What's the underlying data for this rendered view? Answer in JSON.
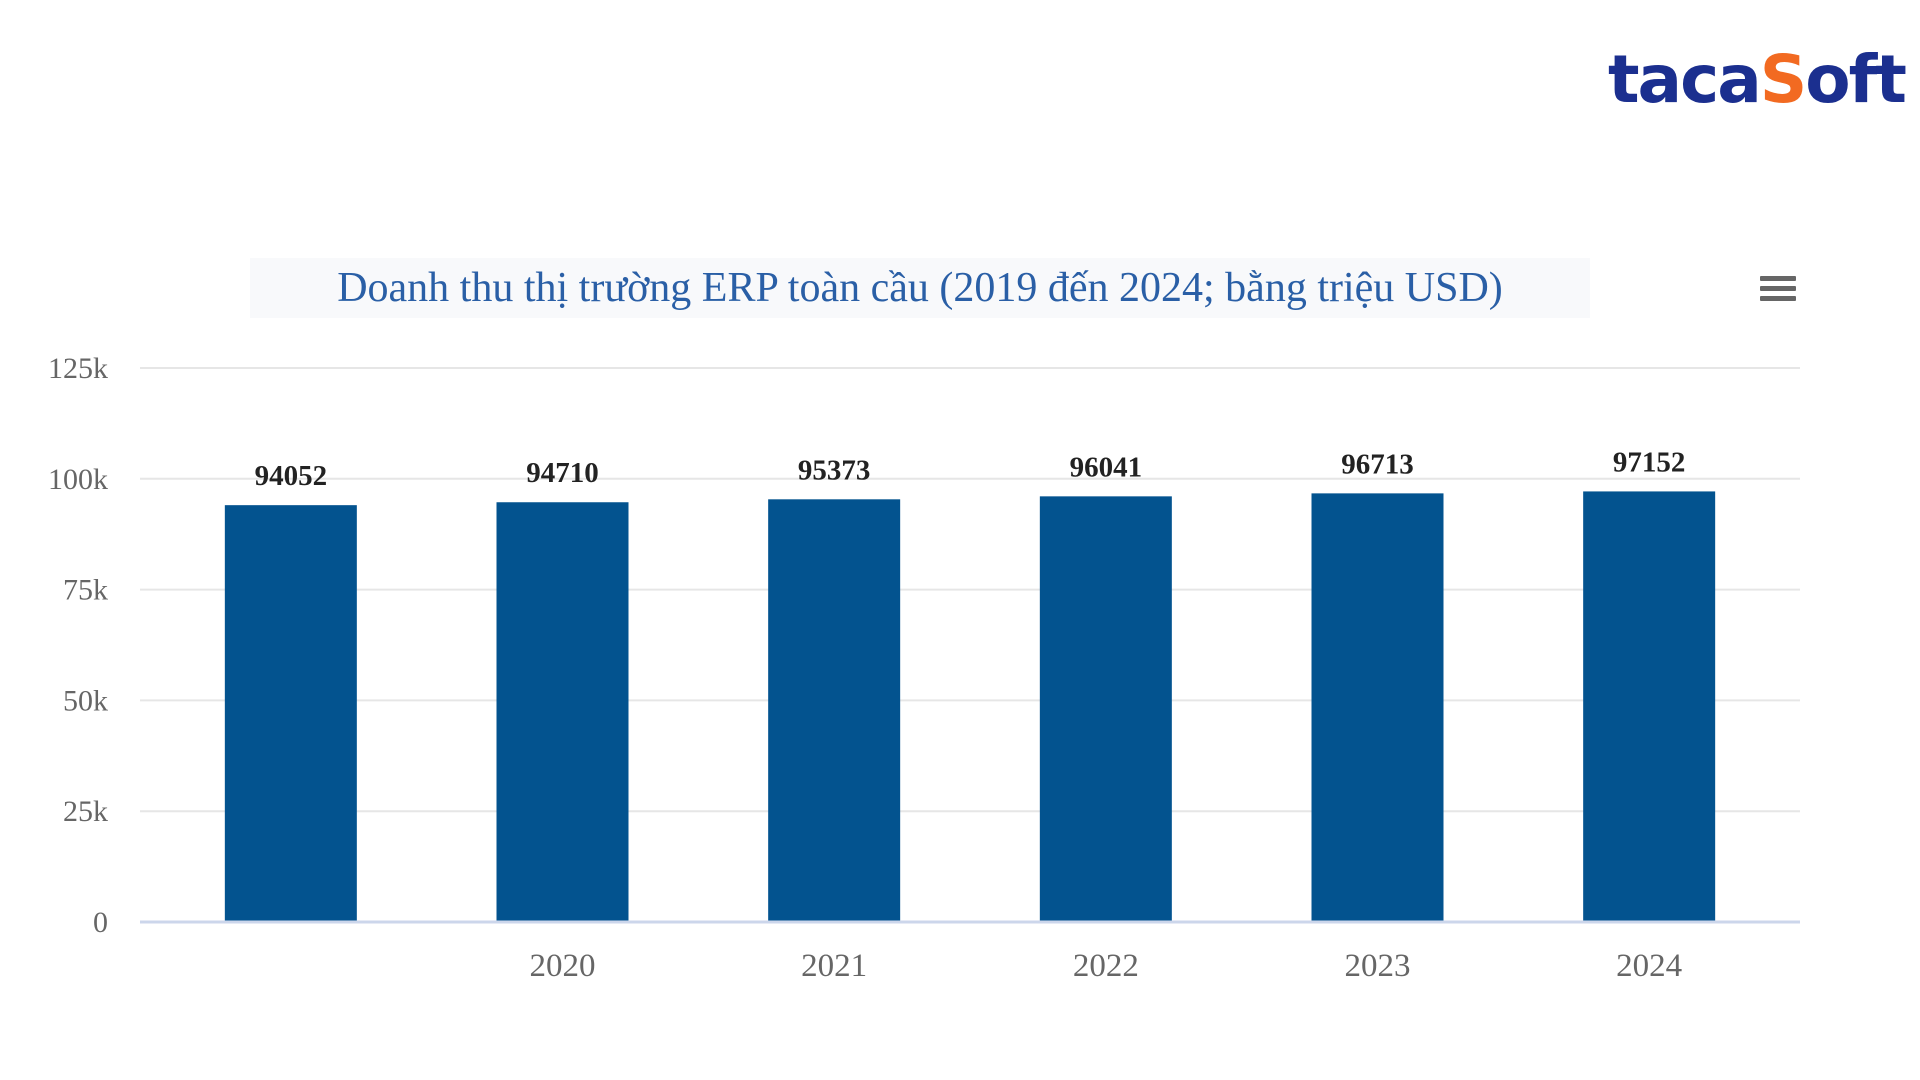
{
  "brand": {
    "logo_part_a": "taca",
    "logo_part_o": "S",
    "logo_part_b": "oft"
  },
  "chart_menu": {
    "icon": "hamburger-menu-icon"
  },
  "chart_data": {
    "type": "bar",
    "title": "Doanh thu thị trường ERP toàn cầu (2019 đến 2024; bằng triệu USD)",
    "xlabel": "",
    "ylabel": "",
    "categories": [
      "",
      "2020",
      "2021",
      "2022",
      "2023",
      "2024"
    ],
    "values": [
      94052,
      94710,
      95373,
      96041,
      96713,
      97152
    ],
    "data_labels": [
      "94052",
      "94710",
      "95373",
      "96041",
      "96713",
      "97152"
    ],
    "ylim": [
      0,
      125000
    ],
    "yticks": [
      0,
      25000,
      50000,
      75000,
      100000,
      125000
    ],
    "ytick_labels": [
      "0",
      "25k",
      "50k",
      "75k",
      "100k",
      "125k"
    ],
    "grid": true,
    "legend": "none",
    "bar_color": "#03538f",
    "title_color": "#2a5fa6"
  }
}
